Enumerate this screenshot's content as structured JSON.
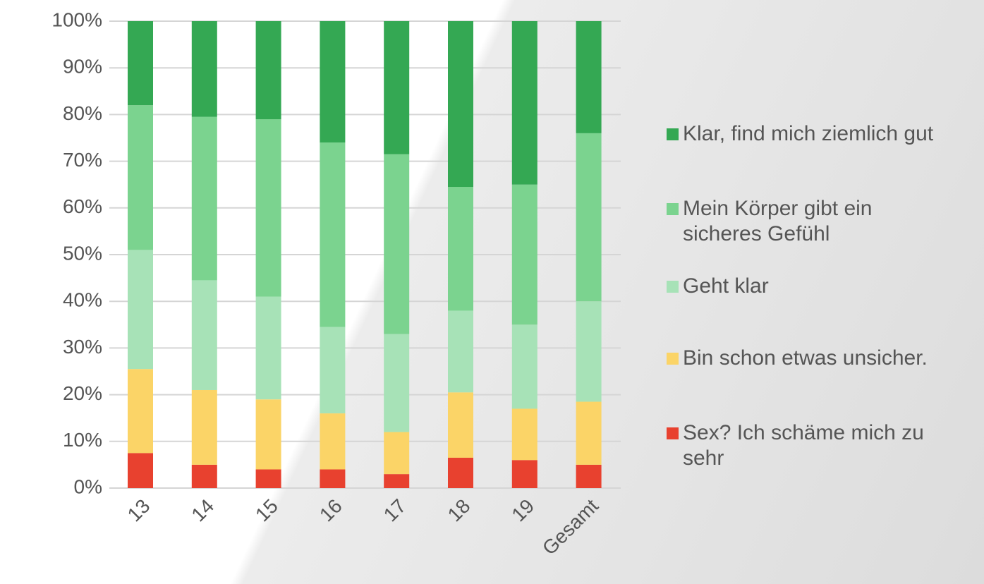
{
  "chart_data": {
    "type": "stacked_bar",
    "categories": [
      "13",
      "14",
      "15",
      "16",
      "17",
      "18",
      "19",
      "Gesamt"
    ],
    "series": [
      {
        "name": "Sex? Ich schäme mich zu sehr",
        "color": "#e8412f",
        "values": [
          7.5,
          5,
          4,
          4,
          3,
          6.5,
          6,
          5
        ]
      },
      {
        "name": "Bin schon etwas unsicher.",
        "color": "#fbd467",
        "values": [
          18,
          16,
          15,
          12,
          9,
          14,
          11,
          13.5
        ]
      },
      {
        "name": "Geht klar",
        "color": "#a7e2b7",
        "values": [
          25.5,
          23.5,
          22,
          18.5,
          21,
          17.5,
          18,
          21.5
        ]
      },
      {
        "name": "Mein Körper gibt ein sicheres Gefühl",
        "color": "#7bd38f",
        "values": [
          31,
          35,
          38,
          39.5,
          38.5,
          26.5,
          30,
          36
        ]
      },
      {
        "name": "Klar, find mich ziemlich gut",
        "color": "#34a853",
        "values": [
          18,
          20.5,
          21,
          26,
          28.5,
          35.5,
          35,
          24
        ]
      }
    ],
    "ylim": [
      0,
      100
    ],
    "yticks": [
      {
        "value": 0,
        "label": "0%"
      },
      {
        "value": 10,
        "label": "10%"
      },
      {
        "value": 20,
        "label": "20%"
      },
      {
        "value": 30,
        "label": "30%"
      },
      {
        "value": 40,
        "label": "40%"
      },
      {
        "value": 50,
        "label": "50%"
      },
      {
        "value": 60,
        "label": "60%"
      },
      {
        "value": 70,
        "label": "70%"
      },
      {
        "value": 80,
        "label": "80%"
      },
      {
        "value": 90,
        "label": "90%"
      },
      {
        "value": 100,
        "label": "100%"
      }
    ],
    "grid": true
  }
}
